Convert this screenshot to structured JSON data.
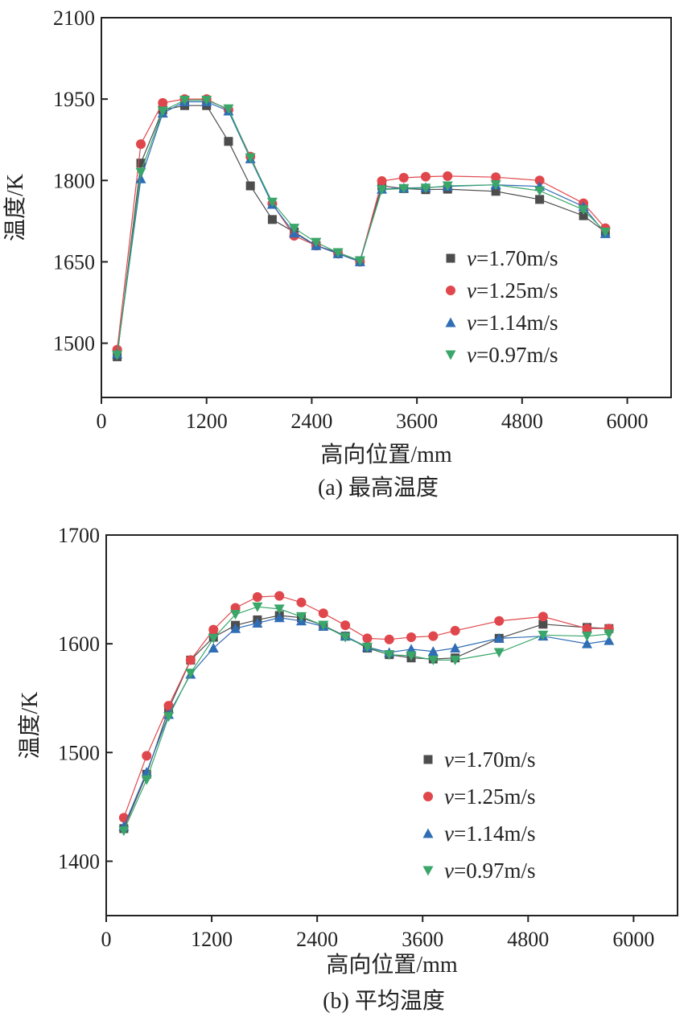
{
  "chart_data": [
    {
      "type": "line",
      "caption": "(a)  最高温度",
      "xlabel": "高向位置/mm",
      "ylabel": "温度/K",
      "xlim": [
        0,
        6500
      ],
      "ylim": [
        1400,
        2100
      ],
      "xticks": [
        0,
        1200,
        2400,
        3600,
        4800,
        6000
      ],
      "yticks": [
        1500,
        1650,
        1800,
        1950,
        2100
      ],
      "xtick_labels": [
        "0",
        "1200",
        "2400",
        "3600",
        "4800",
        "6000"
      ],
      "ytick_labels": [
        "1500",
        "1650",
        "1800",
        "1950",
        "2100"
      ],
      "legend_position": "bottom-right",
      "series": [
        {
          "name_italic": "v",
          "name_rest": "=1.70m/s",
          "marker": "square",
          "color": "#4d4d4d",
          "x": [
            180,
            450,
            700,
            950,
            1200,
            1450,
            1700,
            1950,
            2200,
            2450,
            2700,
            2950,
            3200,
            3450,
            3700,
            3950,
            4500,
            5000,
            5500,
            5750
          ],
          "y": [
            1475,
            1832,
            1930,
            1938,
            1938,
            1872,
            1790,
            1728,
            1705,
            1680,
            1667,
            1652,
            1790,
            1785,
            1783,
            1784,
            1780,
            1765,
            1735,
            1705
          ]
        },
        {
          "name_italic": "v",
          "name_rest": "=1.25m/s",
          "marker": "circle",
          "color": "#e0474c",
          "x": [
            180,
            450,
            700,
            950,
            1200,
            1450,
            1700,
            1950,
            2200,
            2450,
            2700,
            2950,
            3200,
            3450,
            3700,
            3950,
            4500,
            5000,
            5500,
            5750
          ],
          "y": [
            1488,
            1867,
            1943,
            1950,
            1950,
            1930,
            1844,
            1757,
            1698,
            1680,
            1665,
            1650,
            1799,
            1805,
            1807,
            1808,
            1806,
            1800,
            1758,
            1712
          ]
        },
        {
          "name_italic": "v",
          "name_rest": "=1.14m/s",
          "marker": "triangle-up",
          "color": "#2f6db5",
          "x": [
            180,
            450,
            700,
            950,
            1200,
            1450,
            1700,
            1950,
            2200,
            2450,
            2700,
            2950,
            3200,
            3450,
            3700,
            3950,
            4500,
            5000,
            5500,
            5750
          ],
          "y": [
            1480,
            1803,
            1924,
            1945,
            1945,
            1928,
            1840,
            1756,
            1703,
            1680,
            1665,
            1650,
            1784,
            1786,
            1787,
            1789,
            1792,
            1789,
            1752,
            1702
          ]
        },
        {
          "name_italic": "v",
          "name_rest": "=0.97m/s",
          "marker": "triangle-down",
          "color": "#3aa66a",
          "x": [
            180,
            450,
            700,
            950,
            1200,
            1450,
            1700,
            1950,
            2200,
            2450,
            2700,
            2950,
            3200,
            3450,
            3700,
            3950,
            4500,
            5000,
            5500,
            5750
          ],
          "y": [
            1478,
            1815,
            1928,
            1948,
            1948,
            1932,
            1842,
            1760,
            1712,
            1686,
            1667,
            1652,
            1783,
            1785,
            1786,
            1790,
            1792,
            1781,
            1746,
            1705
          ]
        }
      ]
    },
    {
      "type": "line",
      "caption": "(b) 平均温度",
      "xlabel": "高向位置/mm",
      "ylabel": "温度/K",
      "xlim": [
        0,
        6500
      ],
      "ylim": [
        1350,
        1700
      ],
      "xticks": [
        0,
        1200,
        2400,
        3600,
        4800,
        6000
      ],
      "yticks": [
        1400,
        1500,
        1600,
        1700
      ],
      "xtick_labels": [
        "0",
        "1200",
        "2400",
        "3600",
        "4800",
        "6000"
      ],
      "ytick_labels": [
        "1400",
        "1500",
        "1600",
        "1700"
      ],
      "legend_position": "bottom-right",
      "series": [
        {
          "name_italic": "v",
          "name_rest": "=1.70m/s",
          "marker": "square",
          "color": "#4d4d4d",
          "x": [
            200,
            460,
            710,
            960,
            1220,
            1470,
            1720,
            1970,
            2220,
            2470,
            2720,
            2970,
            3220,
            3470,
            3720,
            3970,
            4470,
            4970,
            5470,
            5720
          ],
          "y": [
            1430,
            1480,
            1540,
            1585,
            1606,
            1617,
            1622,
            1626,
            1624,
            1617,
            1607,
            1596,
            1590,
            1587,
            1586,
            1587,
            1605,
            1618,
            1615,
            1614
          ]
        },
        {
          "name_italic": "v",
          "name_rest": "=1.25m/s",
          "marker": "circle",
          "color": "#e0474c",
          "x": [
            200,
            460,
            710,
            960,
            1220,
            1470,
            1720,
            1970,
            2220,
            2470,
            2720,
            2970,
            3220,
            3470,
            3720,
            3970,
            4470,
            4970,
            5470,
            5720
          ],
          "y": [
            1440,
            1497,
            1543,
            1585,
            1613,
            1633,
            1643,
            1644,
            1638,
            1628,
            1617,
            1605,
            1604,
            1606,
            1607,
            1612,
            1621,
            1625,
            1614,
            1614
          ]
        },
        {
          "name_italic": "v",
          "name_rest": "=1.14m/s",
          "marker": "triangle-up",
          "color": "#2f6db5",
          "x": [
            200,
            460,
            710,
            960,
            1220,
            1470,
            1720,
            1970,
            2220,
            2470,
            2720,
            2970,
            3220,
            3470,
            3720,
            3970,
            4470,
            4970,
            5470,
            5720
          ],
          "y": [
            1432,
            1482,
            1535,
            1572,
            1596,
            1614,
            1619,
            1624,
            1621,
            1616,
            1607,
            1597,
            1592,
            1595,
            1593,
            1596,
            1605,
            1607,
            1600,
            1603
          ]
        },
        {
          "name_italic": "v",
          "name_rest": "=0.97m/s",
          "marker": "triangle-down",
          "color": "#3aa66a",
          "x": [
            200,
            460,
            710,
            960,
            1220,
            1470,
            1720,
            1970,
            2220,
            2470,
            2720,
            2970,
            3220,
            3470,
            3720,
            3970,
            4470,
            4970,
            5470,
            5720
          ],
          "y": [
            1428,
            1475,
            1533,
            1573,
            1605,
            1627,
            1634,
            1632,
            1625,
            1617,
            1606,
            1597,
            1590,
            1589,
            1585,
            1585,
            1592,
            1608,
            1607,
            1609
          ]
        }
      ]
    }
  ]
}
